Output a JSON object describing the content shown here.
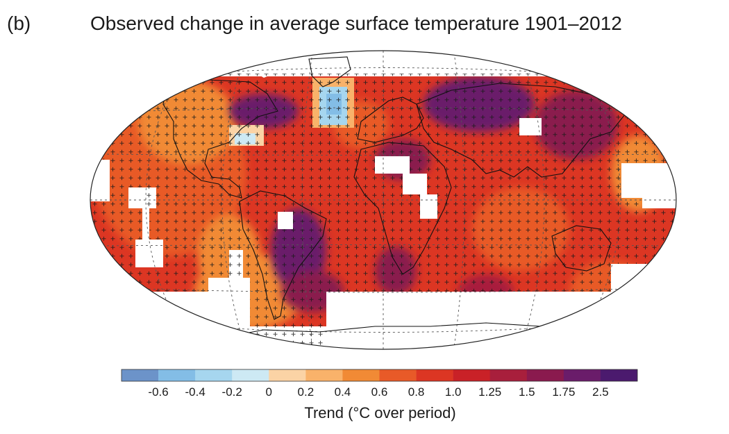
{
  "figure": {
    "panel_label": "(b)",
    "title": "Observed change in average surface temperature 1901–2012",
    "unit_label": "Trend (°C over period)"
  },
  "legend": {
    "bins": [
      {
        "color": "#6c93c9"
      },
      {
        "color": "#83bde6"
      },
      {
        "color": "#a6d6ef"
      },
      {
        "color": "#cde9f4"
      },
      {
        "color": "#fbd3a5"
      },
      {
        "color": "#f9b26a"
      },
      {
        "color": "#f18a35"
      },
      {
        "color": "#e85a28"
      },
      {
        "color": "#dc3623"
      },
      {
        "color": "#c92127"
      },
      {
        "color": "#a81f3c"
      },
      {
        "color": "#8a1a4e"
      },
      {
        "color": "#6a1c6a"
      },
      {
        "color": "#4b1a6e"
      }
    ],
    "tick_labels": [
      "-0.6",
      "-0.4",
      "-0.2",
      "0",
      "0.2",
      "0.4",
      "0.6",
      "0.8",
      "1.0",
      "1.25",
      "1.5",
      "1.75",
      "2.5"
    ]
  },
  "map": {
    "projection": "Robinson",
    "shading": "gridded temperature trend, 5-degree cells",
    "significance_marker": "+",
    "missing_data_color": "#ffffff",
    "dominant_trend_color": "#dc3623",
    "regions": [
      {
        "name": "north-atlantic-cooling",
        "color": "#a6d6ef"
      },
      {
        "name": "labrador-sea-cooling",
        "color": "#cde9f4"
      },
      {
        "name": "eurasia-strong-warming",
        "color": "#6a1c6a"
      },
      {
        "name": "brazil-strong-warming",
        "color": "#6a1c6a"
      },
      {
        "name": "sahara-missing",
        "color": "#ffffff"
      },
      {
        "name": "antarctica-missing",
        "color": "#ffffff"
      }
    ]
  }
}
